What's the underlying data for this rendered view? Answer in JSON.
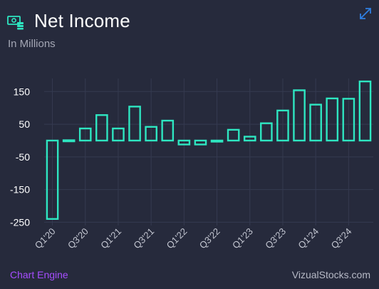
{
  "header": {
    "title": "Net Income",
    "subtitle": "In Millions"
  },
  "icons": {
    "money": "money-icon",
    "expand": "expand-icon"
  },
  "footer": {
    "left": "Chart Engine",
    "right": "VizualStocks.com"
  },
  "colors": {
    "bar": "#2ee6c1",
    "background": "#262a3c",
    "grid": "#353a50",
    "footer_left": "#a64dff",
    "expand_icon": "#2f7fe0"
  },
  "chart_data": {
    "type": "bar",
    "categories": [
      "Q1'20",
      "Q2'20",
      "Q3'20",
      "Q4'20",
      "Q1'21",
      "Q2'21",
      "Q3'21",
      "Q4'21",
      "Q1'22",
      "Q2'22",
      "Q3'22",
      "Q4'22",
      "Q1'23",
      "Q2'23",
      "Q3'23",
      "Q4'23",
      "Q1'24",
      "Q2'24",
      "Q3'24",
      "Q4'24"
    ],
    "tick_labels": [
      "Q1'20",
      "Q3'20",
      "Q1'21",
      "Q3'21",
      "Q1'22",
      "Q3'22",
      "Q1'23",
      "Q3'23",
      "Q1'24",
      "Q3'24"
    ],
    "values": [
      -240,
      1,
      37,
      78,
      37,
      104,
      42,
      61,
      -12,
      -12,
      -2,
      33,
      12,
      53,
      92,
      154,
      110,
      129,
      128,
      181
    ],
    "yticks": [
      150,
      50,
      -50,
      -150,
      -250
    ],
    "ylim": [
      -260,
      190
    ],
    "grid": true
  }
}
